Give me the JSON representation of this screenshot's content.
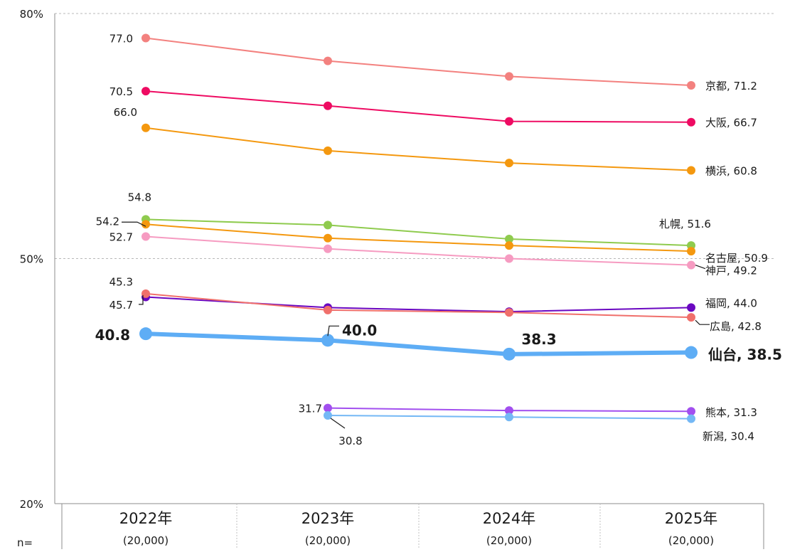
{
  "chart_data": {
    "type": "line",
    "title": "",
    "xlabel": "",
    "ylabel": "",
    "ylim": [
      20,
      80
    ],
    "y_ticks": [
      {
        "value": 20,
        "label": "20%"
      },
      {
        "value": 50,
        "label": "50%"
      },
      {
        "value": 80,
        "label": "80%"
      }
    ],
    "grid": "dashed at 50% and 80%",
    "categories": [
      "2022年",
      "2023年",
      "2024年",
      "2025年"
    ],
    "n_label": "n=",
    "n_values": [
      "(20,000)",
      "(20,000)",
      "(20,000)",
      "(20,000)"
    ],
    "series": [
      {
        "name": "京都",
        "color": "#f3817f",
        "emphasis": false,
        "values": [
          77.0,
          74.2,
          72.3,
          71.2
        ],
        "labels": [
          {
            "index": 0,
            "text": "77.0"
          },
          {
            "index": 3,
            "text": "京都, 71.2"
          }
        ]
      },
      {
        "name": "大阪",
        "color": "#ee0b62",
        "emphasis": false,
        "values": [
          70.5,
          68.7,
          66.8,
          66.7
        ],
        "labels": [
          {
            "index": 0,
            "text": "70.5"
          },
          {
            "index": 3,
            "text": "大阪, 66.7"
          }
        ]
      },
      {
        "name": "横浜",
        "color": "#f4980f",
        "emphasis": false,
        "values": [
          66.0,
          63.2,
          61.7,
          60.8
        ],
        "labels": [
          {
            "index": 0,
            "text": "66.0"
          },
          {
            "index": 3,
            "text": "横浜, 60.8"
          }
        ]
      },
      {
        "name": "札幌",
        "color": "#8fcb4e",
        "emphasis": false,
        "values": [
          54.8,
          54.1,
          52.4,
          51.6
        ],
        "labels": [
          {
            "index": 0,
            "text": "54.8"
          },
          {
            "index": 3,
            "text": "札幌, 51.6"
          }
        ]
      },
      {
        "name": "名古屋",
        "color": "#f4980f",
        "emphasis": false,
        "values": [
          54.2,
          52.5,
          51.6,
          50.9
        ],
        "labels": [
          {
            "index": 0,
            "text": "54.2"
          },
          {
            "index": 3,
            "text": "名古屋, 50.9"
          }
        ]
      },
      {
        "name": "神戸",
        "color": "#f69bc1",
        "emphasis": false,
        "values": [
          52.7,
          51.2,
          50.0,
          49.2
        ],
        "labels": [
          {
            "index": 0,
            "text": "52.7"
          },
          {
            "index": 3,
            "text": "神戸, 49.2"
          }
        ]
      },
      {
        "name": "福岡",
        "color": "#6a07c1",
        "emphasis": false,
        "values": [
          45.3,
          44.0,
          43.5,
          44.0
        ],
        "labels": [
          {
            "index": 0,
            "text": "45.3"
          },
          {
            "index": 3,
            "text": "福岡, 44.0"
          }
        ]
      },
      {
        "name": "広島",
        "color": "#f06f6b",
        "emphasis": false,
        "values": [
          45.7,
          43.7,
          43.4,
          42.8
        ],
        "labels": [
          {
            "index": 0,
            "text": "45.7"
          },
          {
            "index": 3,
            "text": "広島, 42.8"
          }
        ]
      },
      {
        "name": "仙台",
        "color": "#5eadf5",
        "emphasis": true,
        "values": [
          40.8,
          40.0,
          38.3,
          38.5
        ],
        "labels": [
          {
            "index": 0,
            "text": "40.8"
          },
          {
            "index": 1,
            "text": "40.0"
          },
          {
            "index": 2,
            "text": "38.3"
          },
          {
            "index": 3,
            "text": "仙台, 38.5"
          }
        ]
      },
      {
        "name": "熊本",
        "color": "#a24fef",
        "emphasis": false,
        "values": [
          null,
          31.7,
          31.4,
          31.3
        ],
        "labels": [
          {
            "index": 1,
            "text": "31.7"
          },
          {
            "index": 3,
            "text": "熊本, 31.3"
          }
        ]
      },
      {
        "name": "新潟",
        "color": "#74b8f5",
        "emphasis": false,
        "values": [
          null,
          30.8,
          30.6,
          30.4
        ],
        "labels": [
          {
            "index": 1,
            "text": "30.8"
          },
          {
            "index": 3,
            "text": "新潟, 30.4"
          }
        ]
      }
    ]
  }
}
